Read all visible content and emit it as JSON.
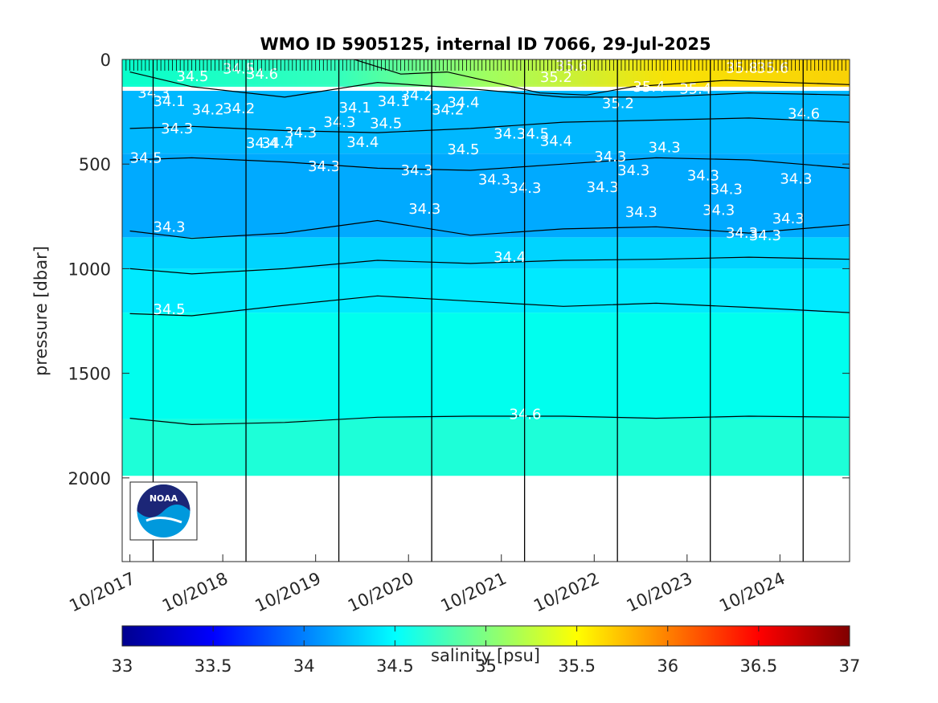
{
  "chart_data": {
    "type": "heatmap",
    "title": "WMO ID 5905125, internal ID 7066, 29-Jul-2025",
    "ylabel": "pressure [dbar]",
    "ylim": [
      0,
      2400
    ],
    "yreversed": true,
    "yticks": [
      0,
      500,
      1000,
      1500,
      2000
    ],
    "xlabel": "",
    "xticks": [
      "10/2017",
      "10/2018",
      "10/2019",
      "10/2020",
      "10/2021",
      "10/2022",
      "10/2023",
      "10/2024"
    ],
    "xrange": [
      "2017-09",
      "2025-07"
    ],
    "year_divider_dates": [
      "2018-01",
      "2019-01",
      "2020-01",
      "2021-01",
      "2022-01",
      "2023-01",
      "2024-01",
      "2025-01"
    ],
    "colorbar": {
      "label": "salinity [psu]",
      "range": [
        33,
        37
      ],
      "ticks": [
        33,
        33.5,
        34,
        34.5,
        35,
        35.5,
        36,
        36.5,
        37
      ],
      "colormap": "jet"
    },
    "layers": [
      {
        "salinity": 34.6,
        "top_dbar": 1720,
        "bottom_dbar": 1990,
        "color": "#1dffd8"
      },
      {
        "salinity": 34.5,
        "top_dbar": 1210,
        "bottom_dbar": 1720,
        "color": "#00ffee"
      },
      {
        "salinity": 34.4,
        "top_dbar": 1000,
        "bottom_dbar": 1210,
        "color": "#00eaff"
      },
      {
        "salinity": 34.35,
        "top_dbar": 850,
        "bottom_dbar": 1000,
        "color": "#00d4ff"
      },
      {
        "salinity": 34.3,
        "top_dbar": 450,
        "bottom_dbar": 850,
        "color": "#00aaff"
      },
      {
        "salinity": 34.2,
        "top_dbar": 150,
        "bottom_dbar": 450,
        "color": "#00b8ff"
      },
      {
        "salinity": 35.2,
        "top_dbar": 0,
        "bottom_dbar": 120,
        "color": "#8cff73"
      }
    ],
    "contour_lines": [
      {
        "level": 34.6,
        "points": [
          [
            "2017-10",
            1715
          ],
          [
            "2018-06",
            1745
          ],
          [
            "2019-06",
            1735
          ],
          [
            "2020-06",
            1710
          ],
          [
            "2021-06",
            1705
          ],
          [
            "2022-06",
            1705
          ],
          [
            "2023-06",
            1715
          ],
          [
            "2024-06",
            1705
          ],
          [
            "2025-07",
            1710
          ]
        ]
      },
      {
        "level": 34.5,
        "points": [
          [
            "2017-10",
            1215
          ],
          [
            "2018-06",
            1225
          ],
          [
            "2019-06",
            1175
          ],
          [
            "2020-06",
            1130
          ],
          [
            "2021-06",
            1155
          ],
          [
            "2022-06",
            1180
          ],
          [
            "2023-06",
            1165
          ],
          [
            "2024-06",
            1185
          ],
          [
            "2025-07",
            1210
          ]
        ]
      },
      {
        "level": 34.4,
        "points": [
          [
            "2017-10",
            1000
          ],
          [
            "2018-06",
            1025
          ],
          [
            "2019-06",
            1000
          ],
          [
            "2020-06",
            960
          ],
          [
            "2021-06",
            975
          ],
          [
            "2022-06",
            960
          ],
          [
            "2023-06",
            955
          ],
          [
            "2024-06",
            945
          ],
          [
            "2025-07",
            955
          ]
        ]
      },
      {
        "level": 34.35,
        "points": [
          [
            "2017-10",
            820
          ],
          [
            "2018-06",
            855
          ],
          [
            "2019-06",
            830
          ],
          [
            "2020-06",
            770
          ],
          [
            "2021-06",
            840
          ],
          [
            "2022-06",
            810
          ],
          [
            "2023-06",
            800
          ],
          [
            "2024-06",
            830
          ],
          [
            "2025-07",
            790
          ]
        ]
      },
      {
        "level": 34.3,
        "points": [
          [
            "2017-10",
            480
          ],
          [
            "2018-06",
            470
          ],
          [
            "2019-06",
            490
          ],
          [
            "2020-06",
            520
          ],
          [
            "2021-06",
            530
          ],
          [
            "2022-06",
            500
          ],
          [
            "2023-06",
            470
          ],
          [
            "2024-06",
            480
          ],
          [
            "2025-07",
            520
          ]
        ]
      },
      {
        "level": 34.2,
        "points": [
          [
            "2017-10",
            330
          ],
          [
            "2018-06",
            320
          ],
          [
            "2019-06",
            340
          ],
          [
            "2020-06",
            350
          ],
          [
            "2021-06",
            330
          ],
          [
            "2022-06",
            300
          ],
          [
            "2023-06",
            290
          ],
          [
            "2024-06",
            280
          ],
          [
            "2025-07",
            300
          ]
        ]
      },
      {
        "level": 34.1,
        "points": [
          [
            "2017-10",
            60
          ],
          [
            "2018-06",
            130
          ],
          [
            "2019-06",
            180
          ],
          [
            "2020-06",
            110
          ],
          [
            "2021-06",
            140
          ],
          [
            "2022-06",
            180
          ],
          [
            "2023-06",
            180
          ],
          [
            "2024-06",
            160
          ],
          [
            "2025-07",
            170
          ]
        ]
      },
      {
        "level": 35.0,
        "points": [
          [
            "2020-03",
            0
          ],
          [
            "2020-09",
            70
          ],
          [
            "2021-03",
            60
          ],
          [
            "2021-09",
            110
          ],
          [
            "2022-03",
            160
          ],
          [
            "2022-09",
            170
          ],
          [
            "2023-03",
            130
          ],
          [
            "2024-03",
            100
          ],
          [
            "2025-07",
            120
          ]
        ]
      }
    ],
    "contour_labels": [
      {
        "text": "34.5",
        "date": "2017-10",
        "p": 470
      },
      {
        "text": "34.3",
        "date": "2018-01",
        "p": 800
      },
      {
        "text": "34.5",
        "date": "2018-01",
        "p": 1195
      },
      {
        "text": "34.3",
        "date": "2017-11",
        "p": 160
      },
      {
        "text": "34.1",
        "date": "2018-01",
        "p": 200
      },
      {
        "text": "34.2",
        "date": "2018-06",
        "p": 240
      },
      {
        "text": "34.2",
        "date": "2018-10",
        "p": 235
      },
      {
        "text": "34.3",
        "date": "2018-02",
        "p": 330
      },
      {
        "text": "34.5",
        "date": "2018-04",
        "p": 80
      },
      {
        "text": "34.5",
        "date": "2018-10",
        "p": 45
      },
      {
        "text": "34.6",
        "date": "2019-01",
        "p": 70
      },
      {
        "text": "34.4",
        "date": "2019-01",
        "p": 400
      },
      {
        "text": "34.4",
        "date": "2019-03",
        "p": 400
      },
      {
        "text": "34.3",
        "date": "2019-06",
        "p": 350
      },
      {
        "text": "34.3",
        "date": "2019-09",
        "p": 510
      },
      {
        "text": "34.1",
        "date": "2020-01",
        "p": 230
      },
      {
        "text": "34.3",
        "date": "2019-11",
        "p": 300
      },
      {
        "text": "34.5",
        "date": "2020-05",
        "p": 305
      },
      {
        "text": "34.4",
        "date": "2020-02",
        "p": 395
      },
      {
        "text": "34.1",
        "date": "2020-06",
        "p": 200
      },
      {
        "text": "34.2",
        "date": "2020-09",
        "p": 170
      },
      {
        "text": "34.3",
        "date": "2020-09",
        "p": 530
      },
      {
        "text": "34.3",
        "date": "2020-10",
        "p": 715
      },
      {
        "text": "34.2",
        "date": "2021-01",
        "p": 240
      },
      {
        "text": "34.4",
        "date": "2021-03",
        "p": 205
      },
      {
        "text": "34.5",
        "date": "2021-03",
        "p": 430
      },
      {
        "text": "34.3",
        "date": "2021-07",
        "p": 575
      },
      {
        "text": "34.3",
        "date": "2021-11",
        "p": 615
      },
      {
        "text": "34.3",
        "date": "2021-09",
        "p": 355
      },
      {
        "text": "34.5",
        "date": "2021-12",
        "p": 355
      },
      {
        "text": "34.4",
        "date": "2021-09",
        "p": 945
      },
      {
        "text": "34.4",
        "date": "2022-03",
        "p": 390
      },
      {
        "text": "34.3",
        "date": "2022-10",
        "p": 465
      },
      {
        "text": "34.3",
        "date": "2022-09",
        "p": 610
      },
      {
        "text": "34.3",
        "date": "2023-01",
        "p": 530
      },
      {
        "text": "34.3",
        "date": "2023-02",
        "p": 730
      },
      {
        "text": "34.3",
        "date": "2023-05",
        "p": 420
      },
      {
        "text": "34.3",
        "date": "2023-10",
        "p": 555
      },
      {
        "text": "34.3",
        "date": "2023-12",
        "p": 720
      },
      {
        "text": "34.3",
        "date": "2024-01",
        "p": 620
      },
      {
        "text": "34.3",
        "date": "2024-03",
        "p": 830
      },
      {
        "text": "34.3",
        "date": "2024-06",
        "p": 840
      },
      {
        "text": "34.3",
        "date": "2024-10",
        "p": 570
      },
      {
        "text": "34.3",
        "date": "2024-09",
        "p": 760
      },
      {
        "text": "34.6",
        "date": "2024-11",
        "p": 260
      },
      {
        "text": "35.2",
        "date": "2022-03",
        "p": 85
      },
      {
        "text": "35.6",
        "date": "2022-05",
        "p": 30
      },
      {
        "text": "35.2",
        "date": "2022-11",
        "p": 210
      },
      {
        "text": "35.4",
        "date": "2023-03",
        "p": 130
      },
      {
        "text": "35.4",
        "date": "2023-09",
        "p": 140
      },
      {
        "text": "35.8",
        "date": "2024-03",
        "p": 40
      },
      {
        "text": "35.6",
        "date": "2024-07",
        "p": 40
      },
      {
        "text": "34.6",
        "date": "2021-11",
        "p": 1695
      }
    ]
  },
  "logo": {
    "text": "NOAA"
  }
}
